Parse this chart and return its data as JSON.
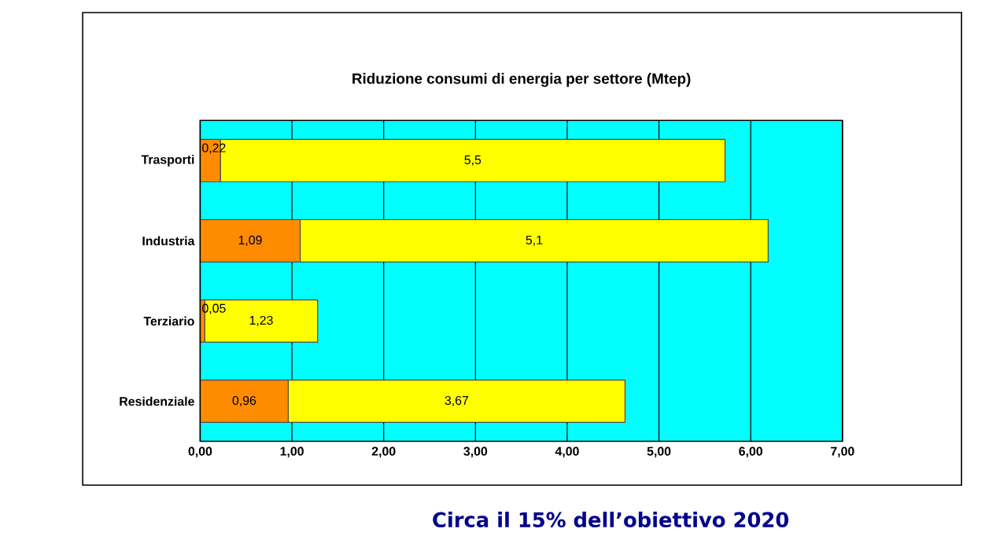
{
  "chart_data": {
    "type": "bar",
    "orientation": "horizontal",
    "stacked": true,
    "title": "Riduzione consumi di energia per settore  (Mtep)",
    "categories": [
      "Trasporti",
      "Industria",
      "Terziario",
      "Residenziale"
    ],
    "series": [
      {
        "color": "#ff8c00",
        "values": [
          0.22,
          1.09,
          0.05,
          0.96
        ],
        "value_labels": [
          "0,22",
          "1,09",
          "0,05",
          "0,96"
        ]
      },
      {
        "color": "#ffff00",
        "values": [
          5.5,
          5.1,
          1.23,
          3.67
        ],
        "value_labels": [
          "5,5",
          "5,1",
          "1,23",
          "3,67"
        ]
      }
    ],
    "xlim": [
      0,
      7
    ],
    "xticks": [
      {
        "value": 0,
        "label": "0,00"
      },
      {
        "value": 1,
        "label": "1,00"
      },
      {
        "value": 2,
        "label": "2,00"
      },
      {
        "value": 3,
        "label": "3,00"
      },
      {
        "value": 4,
        "label": "4,00"
      },
      {
        "value": 5,
        "label": "5,00"
      },
      {
        "value": 6,
        "label": "6,00"
      },
      {
        "value": 7,
        "label": "7,00"
      }
    ],
    "grid": "x",
    "annotations": [
      "Circa il 15% dell’obiettivo 2020"
    ]
  }
}
